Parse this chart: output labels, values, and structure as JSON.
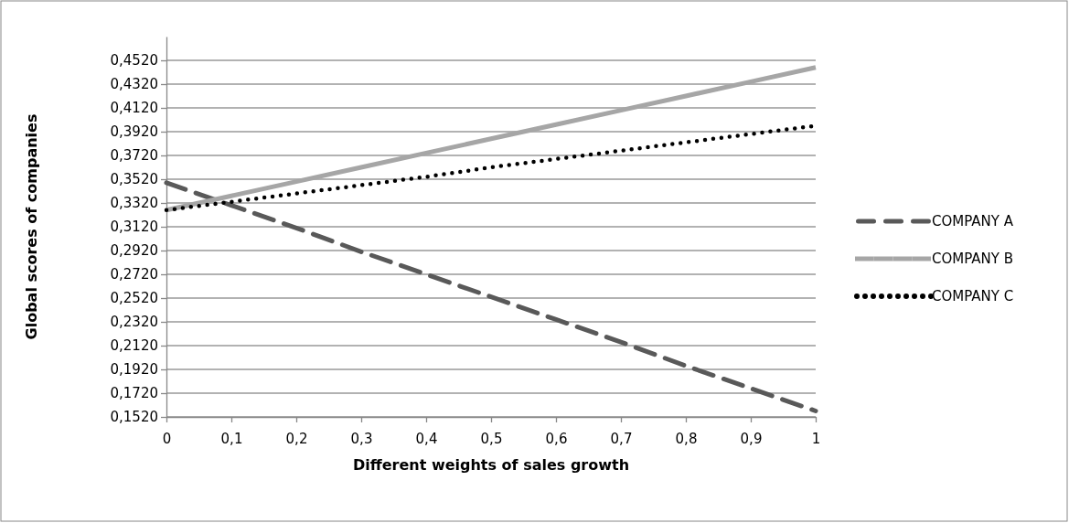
{
  "chart_data": {
    "type": "line",
    "xlabel": "Different weights of sales growth",
    "ylabel": "Global scores of companies",
    "x": [
      0,
      0.1,
      0.2,
      0.3,
      0.4,
      0.5,
      0.6,
      0.7,
      0.8,
      0.9,
      1
    ],
    "series": [
      {
        "name": "COMPANY A",
        "color": "#595959",
        "line_style": "dashed",
        "values": [
          0.349,
          0.33,
          0.311,
          0.291,
          0.272,
          0.253,
          0.234,
          0.215,
          0.195,
          0.176,
          0.157
        ]
      },
      {
        "name": "COMPANY B",
        "color": "#a6a6a6",
        "line_style": "solid",
        "values": [
          0.326,
          0.338,
          0.35,
          0.362,
          0.374,
          0.386,
          0.398,
          0.41,
          0.422,
          0.434,
          0.446
        ]
      },
      {
        "name": "COMPANY C",
        "color": "#000000",
        "line_style": "dotted",
        "values": [
          0.326,
          0.333,
          0.34,
          0.347,
          0.354,
          0.362,
          0.369,
          0.376,
          0.383,
          0.39,
          0.397
        ]
      }
    ],
    "xlim": [
      0,
      1
    ],
    "xticks": [
      {
        "value": 0,
        "label": "0"
      },
      {
        "value": 0.1,
        "label": "0,1"
      },
      {
        "value": 0.2,
        "label": "0,2"
      },
      {
        "value": 0.3,
        "label": "0,3"
      },
      {
        "value": 0.4,
        "label": "0,4"
      },
      {
        "value": 0.5,
        "label": "0,5"
      },
      {
        "value": 0.6,
        "label": "0,6"
      },
      {
        "value": 0.7,
        "label": "0,7"
      },
      {
        "value": 0.8,
        "label": "0,8"
      },
      {
        "value": 0.9,
        "label": "0,9"
      },
      {
        "value": 1,
        "label": "1"
      }
    ],
    "ylim": [
      0.152,
      0.472
    ],
    "yticks": [
      {
        "value": 0.152,
        "label": "0,1520"
      },
      {
        "value": 0.172,
        "label": "0,1720"
      },
      {
        "value": 0.192,
        "label": "0,1920"
      },
      {
        "value": 0.212,
        "label": "0,2120"
      },
      {
        "value": 0.232,
        "label": "0,2320"
      },
      {
        "value": 0.252,
        "label": "0,2520"
      },
      {
        "value": 0.272,
        "label": "0,2720"
      },
      {
        "value": 0.292,
        "label": "0,2920"
      },
      {
        "value": 0.312,
        "label": "0,3120"
      },
      {
        "value": 0.332,
        "label": "0,3320"
      },
      {
        "value": 0.352,
        "label": "0,3520"
      },
      {
        "value": 0.372,
        "label": "0,3720"
      },
      {
        "value": 0.392,
        "label": "0,3920"
      },
      {
        "value": 0.412,
        "label": "0,4120"
      },
      {
        "value": 0.432,
        "label": "0,4320"
      },
      {
        "value": 0.452,
        "label": "0,4520"
      }
    ],
    "grid": "y",
    "legend": "right",
    "marker": "none"
  }
}
